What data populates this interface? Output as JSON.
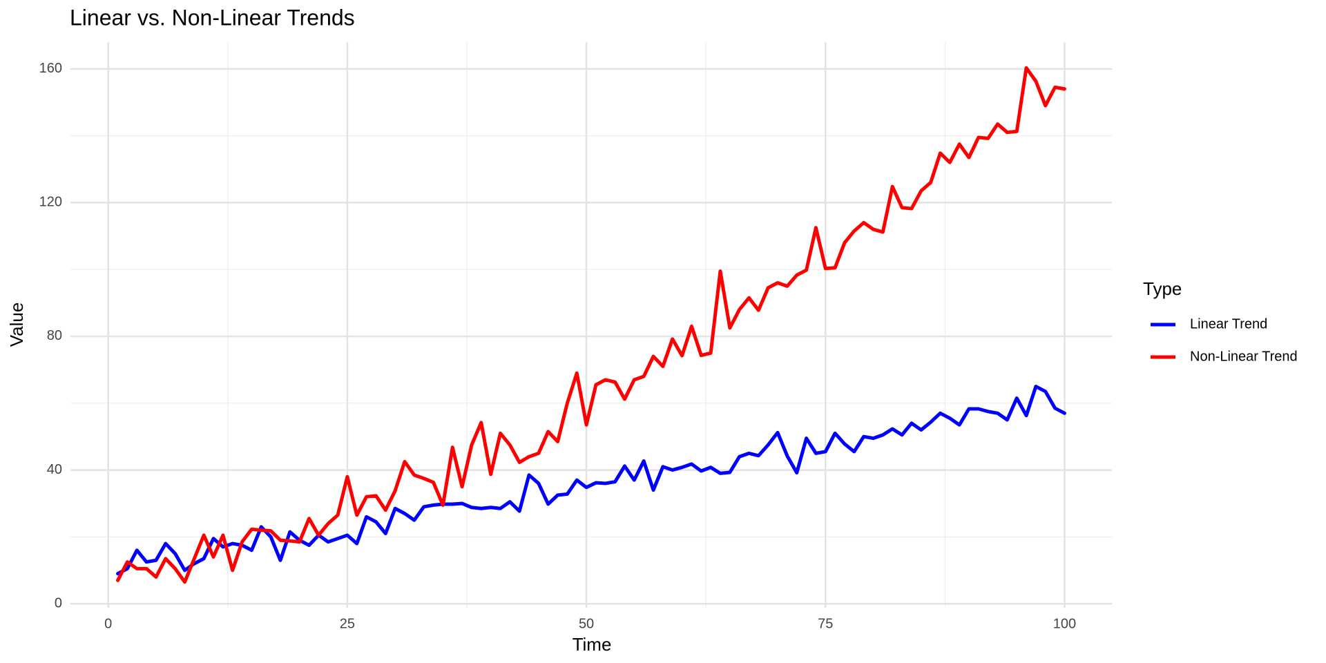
{
  "chart_data": {
    "type": "line",
    "title": "Linear vs. Non-Linear Trends",
    "x_label": "Time",
    "y_label": "Value",
    "legend_title": "Type",
    "legend_position": "right",
    "grid": true,
    "xlim": [
      -3.95,
      104.95
    ],
    "ylim": [
      -1.2,
      168
    ],
    "xticks": [
      0,
      25,
      50,
      75,
      100
    ],
    "yticks": [
      0,
      40,
      80,
      120,
      160
    ],
    "xminor": [
      12.5,
      37.5,
      62.5,
      87.5
    ],
    "yminor": [
      20,
      60,
      100,
      140
    ],
    "x": [
      1,
      2,
      3,
      4,
      5,
      6,
      7,
      8,
      9,
      10,
      11,
      12,
      13,
      14,
      15,
      16,
      17,
      18,
      19,
      20,
      21,
      22,
      23,
      24,
      25,
      26,
      27,
      28,
      29,
      30,
      31,
      32,
      33,
      34,
      35,
      36,
      37,
      38,
      39,
      40,
      41,
      42,
      43,
      44,
      45,
      46,
      47,
      48,
      49,
      50,
      51,
      52,
      53,
      54,
      55,
      56,
      57,
      58,
      59,
      60,
      61,
      62,
      63,
      64,
      65,
      66,
      67,
      68,
      69,
      70,
      71,
      72,
      73,
      74,
      75,
      76,
      77,
      78,
      79,
      80,
      81,
      82,
      83,
      84,
      85,
      86,
      87,
      88,
      89,
      90,
      91,
      92,
      93,
      94,
      95,
      96,
      97,
      98,
      99,
      100
    ],
    "series": [
      {
        "name": "Linear Trend",
        "color": "#0000ff",
        "values": [
          9,
          10.5,
          16,
          12.5,
          13,
          18,
          15,
          10,
          12,
          13.5,
          19.5,
          17,
          18,
          17.5,
          16,
          23,
          20,
          13,
          21.5,
          19,
          17.5,
          20.5,
          18.5,
          19.5,
          20.5,
          18,
          26,
          24.5,
          21,
          28.5,
          27,
          25,
          29,
          29.5,
          29.8,
          29.8,
          30,
          28.8,
          28.5,
          28.8,
          28.5,
          30.5,
          27.7,
          38.5,
          36,
          29.8,
          32.5,
          32.8,
          37,
          34.8,
          36.2,
          36,
          36.5,
          41.2,
          37,
          42.7,
          34,
          41,
          40,
          40.8,
          41.8,
          39.7,
          40.8,
          39,
          39.3,
          44,
          45,
          44.3,
          47.5,
          51.2,
          44.2,
          39.2,
          49.5,
          45,
          45.5,
          51,
          47.8,
          45.5,
          50,
          49.5,
          50.5,
          52.3,
          50.5,
          54,
          52,
          54.3,
          57,
          55.5,
          53.5,
          58.3,
          58.3,
          57.5,
          57,
          55,
          61.5,
          56.3,
          65,
          63.5,
          58.5,
          57
        ]
      },
      {
        "name": "Non-Linear Trend",
        "color": "#ff0000",
        "values": [
          7,
          12.5,
          10.5,
          10.5,
          8,
          13.5,
          10.5,
          6.5,
          13.5,
          20.5,
          14,
          20.5,
          10,
          18.5,
          22.3,
          22,
          21.8,
          19,
          18.8,
          18.5,
          25.5,
          20.5,
          24,
          26.5,
          38,
          26.5,
          32,
          32.3,
          28,
          33.8,
          42.5,
          38.5,
          37.5,
          36.3,
          29.5,
          46.8,
          35,
          47.5,
          54.2,
          38.7,
          51,
          47.5,
          42.3,
          44,
          45,
          51.5,
          48.5,
          60,
          69,
          53.5,
          65.5,
          67,
          66.3,
          61.2,
          67,
          68,
          74,
          71,
          79.2,
          74.2,
          83,
          74.3,
          75,
          99.5,
          82.5,
          88,
          91.5,
          87.8,
          94.5,
          96,
          95,
          98.3,
          99.8,
          112.5,
          100.3,
          100.5,
          108,
          111.5,
          114,
          112,
          111.2,
          124.8,
          118.5,
          118.2,
          123.5,
          126,
          134.8,
          132,
          137.5,
          133.5,
          139.5,
          139.2,
          143.5,
          141,
          141.3,
          160.3,
          156.3,
          149,
          154.5,
          154
        ]
      }
    ]
  }
}
